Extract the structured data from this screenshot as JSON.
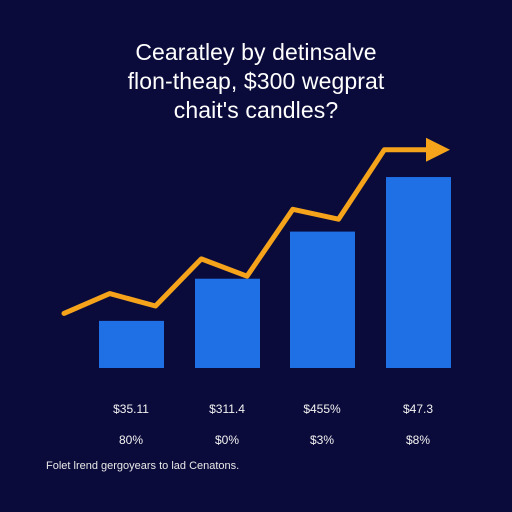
{
  "colors": {
    "background": "#0b0b3b",
    "bar": "#1f6fe5",
    "trend_line": "#f5a31a",
    "text": "#ffffff"
  },
  "chart_data": {
    "type": "bar",
    "title": [
      "Cearatley by detinsalve",
      "flon-theap, $300 wegprat",
      "chait's candles?"
    ],
    "categories": [
      "$35.11",
      "$311.4",
      "$455%",
      "$47.3"
    ],
    "values": [
      19,
      36,
      55,
      77
    ],
    "secondary_labels": [
      "80%",
      "$0%",
      "$3%",
      "$8%"
    ],
    "ylim": [
      0,
      100
    ],
    "trend_line": {
      "points": [
        22,
        30,
        25,
        44,
        37,
        64,
        60,
        88,
        88
      ],
      "arrow": "up-right"
    },
    "footnote": "Folet lrend gergoyears to lad Cenatons."
  }
}
